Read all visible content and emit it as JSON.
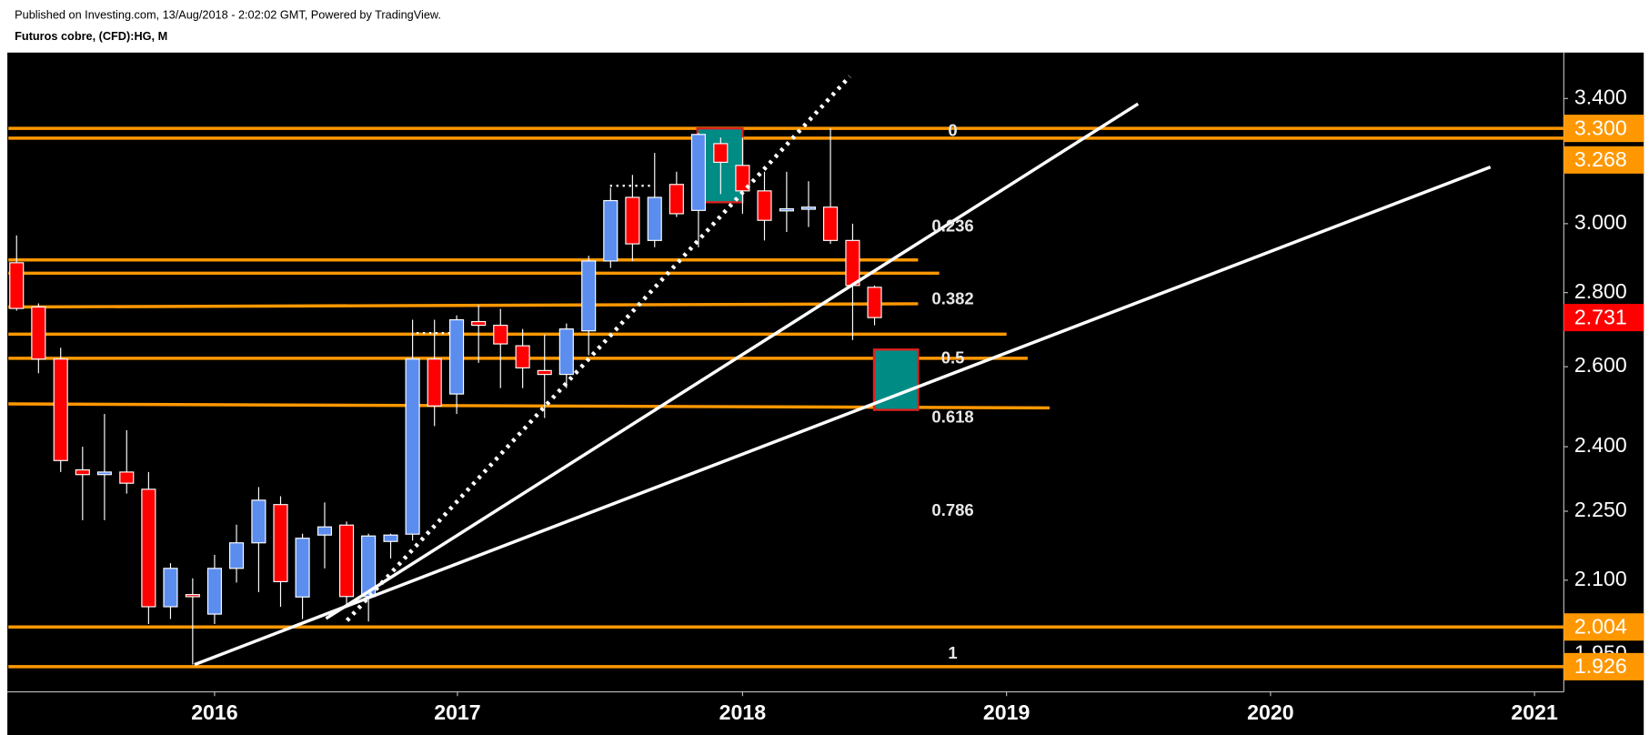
{
  "header": {
    "published": "Published on Investing.com, 13/Aug/2018 - 2:02:02 GMT, Powered by TradingView.",
    "symbol": "Futuros cobre, (CFD):HG, M"
  },
  "chart_data": {
    "type": "candlestick",
    "log_scale": true,
    "up_color": "#5b8def",
    "down_color": "#ff0000",
    "x": [
      2015.25,
      2015.333,
      2015.417,
      2015.5,
      2015.583,
      2015.667,
      2015.75,
      2015.833,
      2015.917,
      2016.0,
      2016.083,
      2016.167,
      2016.25,
      2016.333,
      2016.417,
      2016.5,
      2016.583,
      2016.667,
      2016.75,
      2016.833,
      2016.917,
      2017.0,
      2017.083,
      2017.167,
      2017.25,
      2017.333,
      2017.417,
      2017.5,
      2017.583,
      2017.667,
      2017.75,
      2017.833,
      2017.917,
      2018.0,
      2018.083,
      2018.167,
      2018.25,
      2018.333,
      2018.417,
      2018.5
    ],
    "open": [
      2.885,
      2.76,
      2.62,
      2.345,
      2.334,
      2.34,
      2.3,
      2.045,
      2.07,
      2.03,
      2.125,
      2.18,
      2.265,
      2.065,
      2.197,
      2.219,
      2.066,
      2.183,
      2.199,
      2.62,
      2.53,
      2.72,
      2.71,
      2.655,
      2.59,
      2.58,
      2.695,
      2.89,
      3.08,
      2.95,
      3.12,
      3.04,
      3.25,
      3.18,
      3.1,
      3.04,
      3.045,
      3.05,
      2.95,
      2.815
    ],
    "high": [
      2.965,
      2.77,
      2.65,
      2.4,
      2.48,
      2.44,
      2.34,
      2.136,
      2.104,
      2.154,
      2.22,
      2.305,
      2.284,
      2.2,
      2.27,
      2.227,
      2.2,
      2.2,
      2.725,
      2.725,
      2.737,
      2.765,
      2.755,
      2.7,
      2.685,
      2.715,
      2.905,
      3.11,
      3.15,
      3.22,
      3.16,
      3.285,
      3.27,
      3.27,
      3.16,
      3.16,
      3.13,
      3.3,
      3.0,
      2.82
    ],
    "low": [
      2.75,
      2.583,
      2.34,
      2.23,
      2.23,
      2.29,
      2.01,
      2.02,
      1.93,
      2.01,
      2.095,
      2.075,
      2.045,
      2.02,
      2.125,
      2.05,
      2.015,
      2.146,
      2.185,
      2.45,
      2.48,
      2.61,
      2.545,
      2.545,
      2.47,
      2.545,
      2.63,
      2.87,
      2.89,
      2.93,
      3.02,
      2.93,
      3.09,
      3.03,
      2.95,
      2.975,
      2.99,
      2.94,
      2.67,
      2.71
    ],
    "close": [
      2.756,
      2.62,
      2.367,
      2.334,
      2.34,
      2.314,
      2.045,
      2.125,
      2.066,
      2.125,
      2.18,
      2.275,
      2.097,
      2.19,
      2.215,
      2.066,
      2.195,
      2.197,
      2.62,
      2.5,
      2.725,
      2.71,
      2.66,
      2.597,
      2.58,
      2.7,
      2.89,
      3.07,
      2.94,
      3.08,
      3.03,
      3.28,
      3.19,
      3.1,
      3.01,
      3.045,
      3.05,
      2.95,
      2.82,
      2.731
    ],
    "xlim": [
      2015.219,
      2021.111
    ],
    "xticks": [
      2016,
      {
        "value": 2016.92,
        "label": "2017"
      },
      2018,
      2019,
      2020,
      2021
    ],
    "ylim": [
      1.878,
      3.56
    ],
    "yticks": [
      {
        "value": 3.4,
        "label": "3.400"
      },
      {
        "value": 3.0,
        "label": "3.000"
      },
      {
        "value": 2.8,
        "label": "2.800"
      },
      {
        "value": 2.6,
        "label": "2.600"
      },
      {
        "value": 2.4,
        "label": "2.400"
      },
      {
        "value": 2.25,
        "label": "2.250"
      },
      {
        "value": 2.1,
        "label": "2.100"
      },
      {
        "value": 1.95,
        "label": "1.950"
      }
    ],
    "level_color": "#ff9800",
    "levels": [
      {
        "x": [
          2015.219,
          2021.111
        ],
        "y": [
          3.3,
          3.3
        ]
      },
      {
        "x": [
          2015.219,
          2021.111
        ],
        "y": [
          3.268,
          3.268
        ]
      },
      {
        "x": [
          2015.219,
          2018.665
        ],
        "y": [
          2.893,
          2.893
        ]
      },
      {
        "x": [
          2015.219,
          2018.745
        ],
        "y": [
          2.855,
          2.855
        ]
      },
      {
        "x": [
          2015.219,
          2018.665
        ],
        "y": [
          2.76,
          2.769
        ]
      },
      {
        "x": [
          2015.219,
          2019.0
        ],
        "y": [
          2.686,
          2.686
        ]
      },
      {
        "x": [
          2015.219,
          2019.08
        ],
        "y": [
          2.622,
          2.622
        ]
      },
      {
        "x": [
          2015.219,
          2019.163
        ],
        "y": [
          2.505,
          2.495
        ]
      },
      {
        "x": [
          2015.219,
          2021.111
        ],
        "y": [
          2.004,
          2.004
        ]
      },
      {
        "x": [
          2015.219,
          2021.111
        ],
        "y": [
          1.926,
          1.926
        ]
      }
    ],
    "trend_color": "#ffffff",
    "trend_lines": [
      {
        "x": [
          2015.924,
          2020.833
        ],
        "y": [
          1.93,
          3.175
        ]
      },
      {
        "x": [
          2016.422,
          2019.498
        ],
        "y": [
          2.021,
          3.382
        ]
      }
    ],
    "dotted_trend_lines": [
      {
        "x": [
          2016.502,
          2018.406
        ],
        "y": [
          2.017,
          3.476
        ]
      }
    ],
    "dotted_markers": [
      {
        "x": [
          2017.498,
          2017.657
        ],
        "y": [
          3.116,
          3.116
        ]
      },
      {
        "x": [
          2016.765,
          2016.9
        ],
        "y": [
          2.689,
          2.689
        ]
      }
    ],
    "box_fill": "#008b84",
    "box_border": "#e02020",
    "boxes": [
      {
        "x": [
          2017.829,
          2018.0
        ],
        "y": [
          3.3,
          3.065
        ]
      },
      {
        "x": [
          2018.498,
          2018.665
        ],
        "y": [
          2.645,
          2.49
        ]
      }
    ],
    "fib_labels": [
      {
        "label": "0",
        "price": 3.29
      },
      {
        "label": "0.236",
        "price": 2.99
      },
      {
        "label": "0.382",
        "price": 2.78
      },
      {
        "label": "0.5",
        "price": 2.62
      },
      {
        "label": "0.618",
        "price": 2.47
      },
      {
        "label": "0.786",
        "price": 2.25
      },
      {
        "label": "1",
        "price": 1.95
      }
    ],
    "price_tags": [
      {
        "value": 3.3,
        "label": "3.300",
        "color": "#ff9800"
      },
      {
        "value": 3.268,
        "label": "3.268",
        "color": "#ff9800"
      },
      {
        "value": 2.731,
        "label": "2.731",
        "color": "#ff0000"
      },
      {
        "value": 2.004,
        "label": "2.004",
        "color": "#ff9800"
      },
      {
        "value": 1.926,
        "label": "1.926",
        "color": "#ff9800"
      }
    ]
  }
}
